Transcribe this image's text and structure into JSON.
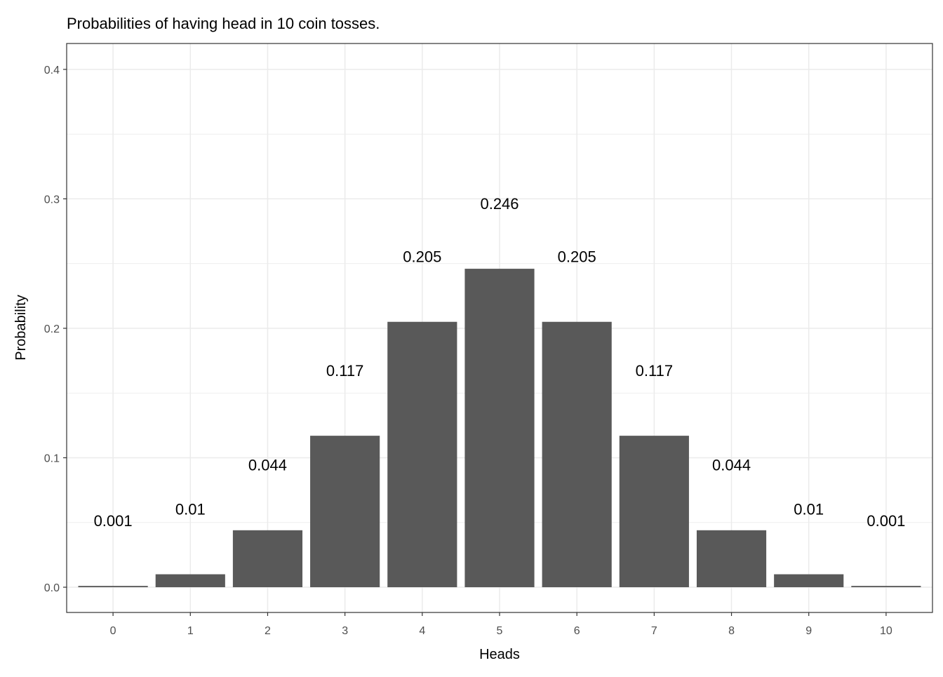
{
  "chart_data": {
    "type": "bar",
    "title": "Probabilities of having head in 10 coin tosses.",
    "xlabel": "Heads",
    "ylabel": "Probability",
    "categories": [
      "0",
      "1",
      "2",
      "3",
      "4",
      "5",
      "6",
      "7",
      "8",
      "9",
      "10"
    ],
    "values": [
      0.001,
      0.01,
      0.044,
      0.117,
      0.205,
      0.246,
      0.205,
      0.117,
      0.044,
      0.01,
      0.001
    ],
    "data_labels": [
      "0.001",
      "0.01",
      "0.044",
      "0.117",
      "0.205",
      "0.246",
      "0.205",
      "0.117",
      "0.044",
      "0.01",
      "0.001"
    ],
    "yticks": [
      0.0,
      0.1,
      0.2,
      0.3,
      0.4
    ],
    "ytick_labels": [
      "0.0",
      "0.1",
      "0.2",
      "0.3",
      "0.4"
    ],
    "ylim": [
      -0.0195,
      0.42
    ],
    "grid": true,
    "legend": "none",
    "colors": {
      "bar": "#595959",
      "grid": "#ebebeb",
      "border": "#333333",
      "tick_text": "#4d4d4d",
      "label_text": "#000000"
    }
  }
}
